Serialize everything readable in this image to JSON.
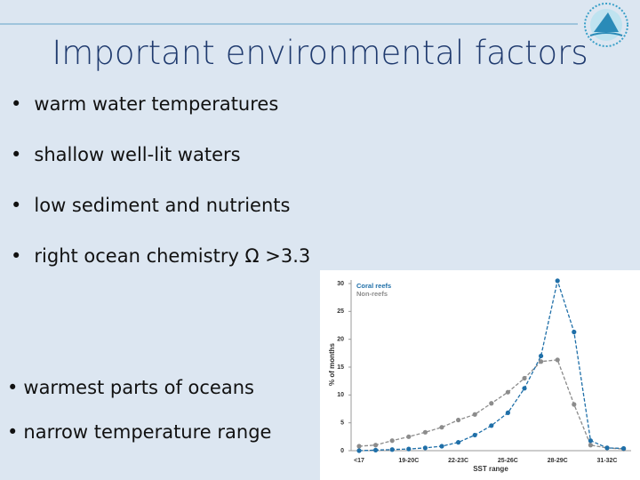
{
  "slide": {
    "title": "Important environmental factors",
    "bullets": [
      "warm water temperatures",
      "shallow well-lit waters",
      "low sediment and nutrients",
      "right ocean chemistry Ω >3.3"
    ],
    "sub_bullets": [
      "warmest parts of oceans",
      "narrow temperature range"
    ]
  },
  "chart_data": {
    "type": "line",
    "categories": [
      "<17",
      null,
      null,
      "19-20C",
      null,
      null,
      "22-23C",
      null,
      null,
      "25-26C",
      null,
      null,
      "28-29C",
      null,
      null,
      "31-32C",
      null
    ],
    "series": [
      {
        "name": "Coral reefs",
        "color": "#1f6fa8",
        "values": [
          0,
          0.1,
          0.2,
          0.3,
          0.5,
          0.8,
          1.5,
          2.8,
          4.5,
          6.8,
          11.2,
          17,
          30.5,
          21.3,
          1.8,
          0.5,
          0.4
        ]
      },
      {
        "name": "Non-reefs",
        "color": "#8c8c8c",
        "values": [
          0.8,
          1,
          1.8,
          2.5,
          3.3,
          4.2,
          5.5,
          6.5,
          8.5,
          10.5,
          13,
          16,
          16.3,
          8.3,
          1,
          0.5,
          0.3
        ]
      }
    ],
    "ylim": [
      0,
      30
    ],
    "yticks": [
      0,
      5,
      10,
      15,
      20,
      25,
      30
    ],
    "ylabel": "% of months",
    "xlabel": "SST range"
  }
}
